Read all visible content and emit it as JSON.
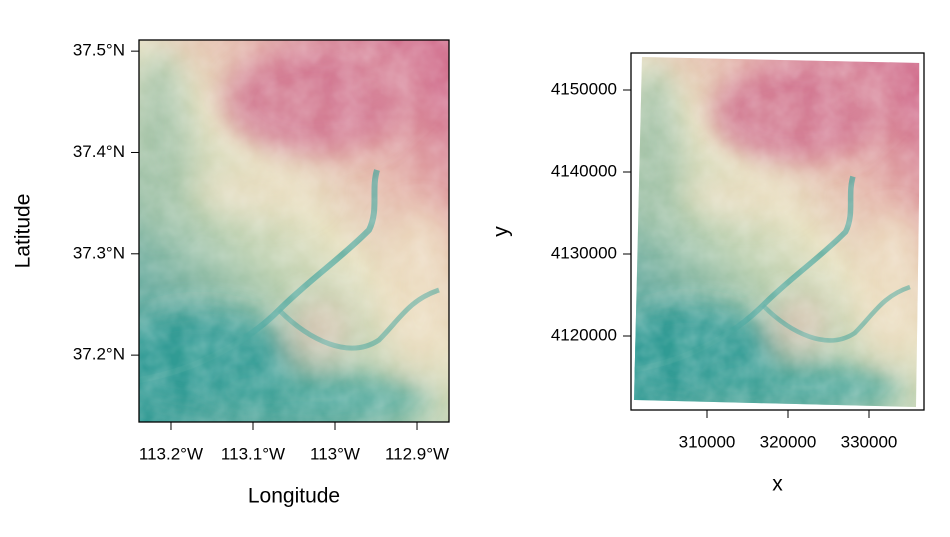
{
  "chart_data": [
    {
      "type": "raster",
      "xlabel": "Longitude",
      "ylabel": "Latitude",
      "xlim": [
        -113.239,
        -112.861
      ],
      "ylim": [
        37.134,
        37.511
      ],
      "xticks": [
        {
          "value": -113.2,
          "label": "113.2°W"
        },
        {
          "value": -113.1,
          "label": "113.1°W"
        },
        {
          "value": -113.0,
          "label": "113°W"
        },
        {
          "value": -112.9,
          "label": "112.9°W"
        }
      ],
      "yticks": [
        {
          "value": 37.2,
          "label": "37.2°N"
        },
        {
          "value": 37.3,
          "label": "37.3°N"
        },
        {
          "value": 37.4,
          "label": "37.4°N"
        },
        {
          "value": 37.5,
          "label": "37.5°N"
        }
      ]
    },
    {
      "type": "raster",
      "xlabel": "x",
      "ylabel": "y",
      "xlim": [
        300617,
        336790
      ],
      "ylim": [
        4110976,
        4154512
      ],
      "xticks": [
        310000,
        320000,
        330000
      ],
      "yticks": [
        4120000,
        4130000,
        4140000,
        4150000
      ]
    }
  ]
}
